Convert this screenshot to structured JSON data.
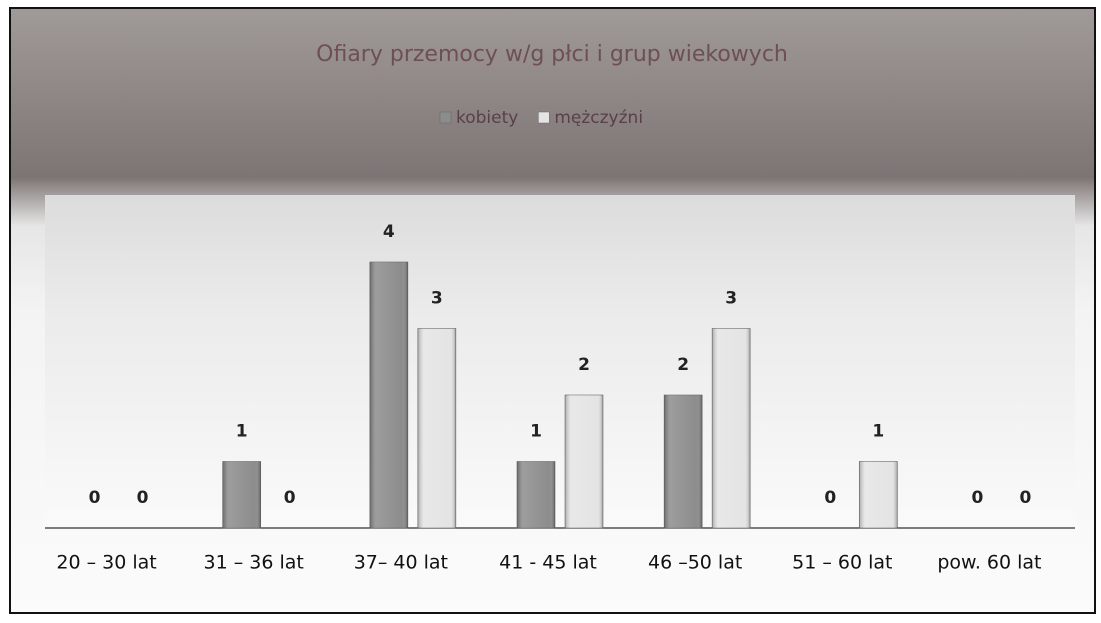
{
  "chart_data": {
    "type": "bar",
    "title": "Ofiary przemocy w/g płci i grup wiekowych",
    "categories": [
      "20 – 30 lat",
      "31 – 36 lat",
      "37– 40 lat",
      "41 -  45 lat",
      "46 –50 lat",
      "51 – 60 lat",
      "pow. 60 lat"
    ],
    "series": [
      {
        "name": "kobiety",
        "color": "#8c8c8c",
        "values": [
          0,
          1,
          4,
          1,
          2,
          0,
          0
        ]
      },
      {
        "name": "mężczyźni",
        "color": "#e4e4e4",
        "values": [
          0,
          0,
          3,
          2,
          3,
          1,
          0
        ]
      }
    ],
    "legend": "top"
  }
}
